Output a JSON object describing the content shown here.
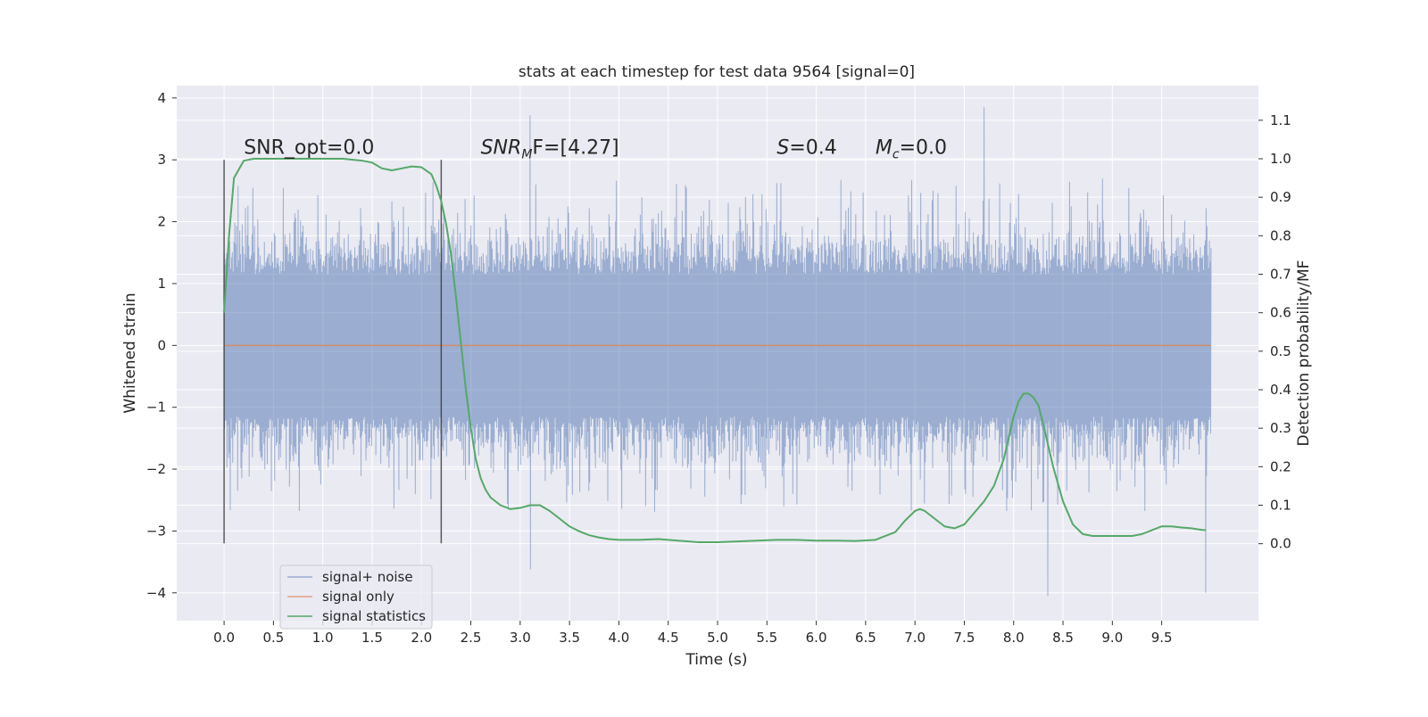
{
  "chart_data": {
    "type": "line",
    "title": "stats at each timestep for test data 9564 [signal=0]",
    "xlabel": "Time (s)",
    "ylabel": "Whitened strain",
    "ylabel_right": "Detection probability/MF",
    "xlim": [
      -0.48,
      10.48
    ],
    "ylim": [
      -4.45,
      4.2
    ],
    "ylim_right": [
      -0.2,
      1.19
    ],
    "x_ticks": [
      0.0,
      0.5,
      1.0,
      1.5,
      2.0,
      2.5,
      3.0,
      3.5,
      4.0,
      4.5,
      5.0,
      5.5,
      6.0,
      6.5,
      7.0,
      7.5,
      8.0,
      8.5,
      9.0,
      9.5
    ],
    "x_tick_labels": [
      "0.0",
      "0.5",
      "1.0",
      "1.5",
      "2.0",
      "2.5",
      "3.0",
      "3.5",
      "4.0",
      "4.5",
      "5.0",
      "5.5",
      "6.0",
      "6.5",
      "7.0",
      "7.5",
      "8.0",
      "8.5",
      "9.0",
      "9.5"
    ],
    "y_ticks": [
      -4,
      -3,
      -2,
      -1,
      0,
      1,
      2,
      3,
      4
    ],
    "y_tick_labels": [
      "−4",
      "−3",
      "−2",
      "−1",
      "0",
      "1",
      "2",
      "3",
      "4"
    ],
    "y_right_ticks": [
      0.0,
      0.1,
      0.2,
      0.3,
      0.4,
      0.5,
      0.6,
      0.7,
      0.8,
      0.9,
      1.0,
      1.1
    ],
    "y_right_tick_labels": [
      "0.0",
      "0.1",
      "0.2",
      "0.3",
      "0.4",
      "0.5",
      "0.6",
      "0.7",
      "0.8",
      "0.9",
      "1.0",
      "1.1"
    ],
    "grid": true,
    "legend_position": "bottom-left",
    "legend": [
      "signal+ noise",
      "signal only",
      "signal statistics"
    ],
    "colors": {
      "noise": "#4c72b0",
      "signal": "#dd8452",
      "statistics": "#55a868",
      "vline": "#333333",
      "axes_bg": "#eaeaf2",
      "grid": "#ffffff"
    },
    "series": [
      {
        "name": "signal+ noise",
        "axis": "left",
        "description": "dense whitened strain noise",
        "x_range": [
          0.0,
          10.0
        ],
        "core_amplitude": 1.15,
        "typical_peak": [
          -2.5,
          2.6
        ],
        "extremes": [
          {
            "x": 3.1,
            "y": 3.72
          },
          {
            "x": 7.7,
            "y": 3.85
          },
          {
            "x": 8.35,
            "y": -4.05
          },
          {
            "x": 9.95,
            "y": -4.0
          },
          {
            "x": 3.1,
            "y": -3.62
          }
        ]
      },
      {
        "name": "signal only",
        "axis": "left",
        "x": [
          0.0,
          10.0
        ],
        "y": [
          0.0,
          0.0
        ]
      },
      {
        "name": "signal statistics",
        "axis": "right",
        "x": [
          0.0,
          0.05,
          0.1,
          0.2,
          0.3,
          0.5,
          0.8,
          1.0,
          1.2,
          1.4,
          1.5,
          1.6,
          1.7,
          1.8,
          1.9,
          2.0,
          2.1,
          2.15,
          2.2,
          2.25,
          2.3,
          2.35,
          2.4,
          2.45,
          2.5,
          2.55,
          2.6,
          2.65,
          2.7,
          2.8,
          2.9,
          3.0,
          3.1,
          3.2,
          3.3,
          3.4,
          3.5,
          3.6,
          3.7,
          3.8,
          3.9,
          4.0,
          4.2,
          4.4,
          4.6,
          4.8,
          5.0,
          5.2,
          5.4,
          5.6,
          5.8,
          6.0,
          6.2,
          6.4,
          6.6,
          6.8,
          6.9,
          7.0,
          7.05,
          7.1,
          7.2,
          7.3,
          7.4,
          7.5,
          7.6,
          7.7,
          7.8,
          7.9,
          8.0,
          8.05,
          8.1,
          8.15,
          8.2,
          8.25,
          8.3,
          8.4,
          8.5,
          8.6,
          8.7,
          8.8,
          9.0,
          9.2,
          9.3,
          9.4,
          9.5,
          9.6,
          9.7,
          9.8,
          9.9,
          9.95
        ],
        "y": [
          0.6,
          0.8,
          0.95,
          0.995,
          1.0,
          1.0,
          1.0,
          1.0,
          1.0,
          0.995,
          0.99,
          0.975,
          0.97,
          0.975,
          0.98,
          0.978,
          0.96,
          0.93,
          0.89,
          0.83,
          0.75,
          0.64,
          0.52,
          0.4,
          0.3,
          0.22,
          0.17,
          0.14,
          0.12,
          0.1,
          0.09,
          0.093,
          0.1,
          0.1,
          0.085,
          0.065,
          0.045,
          0.032,
          0.022,
          0.016,
          0.012,
          0.01,
          0.01,
          0.012,
          0.008,
          0.004,
          0.004,
          0.006,
          0.008,
          0.01,
          0.01,
          0.008,
          0.008,
          0.007,
          0.01,
          0.03,
          0.06,
          0.085,
          0.09,
          0.085,
          0.065,
          0.045,
          0.04,
          0.05,
          0.08,
          0.11,
          0.15,
          0.22,
          0.33,
          0.37,
          0.39,
          0.39,
          0.38,
          0.36,
          0.31,
          0.2,
          0.11,
          0.05,
          0.025,
          0.02,
          0.02,
          0.02,
          0.025,
          0.035,
          0.045,
          0.045,
          0.042,
          0.04,
          0.036,
          0.035
        ]
      }
    ],
    "vertical_lines": [
      {
        "x": 0.0,
        "ymin": -3.2,
        "ymax": 3.0
      },
      {
        "x": 2.2,
        "ymin": -3.2,
        "ymax": 3.0
      }
    ],
    "annotations": [
      {
        "key": "snr_opt",
        "text": "SNR_opt=0.0",
        "x": 0.2,
        "y": 3.1
      },
      {
        "key": "snr_mf",
        "prefix": "SNR",
        "sub": "M",
        "suffix": "F=[4.27]",
        "x": 2.6,
        "y": 3.1
      },
      {
        "key": "s",
        "prefix": "S",
        "suffix": "=0.4",
        "x": 5.6,
        "y": 3.1
      },
      {
        "key": "mc",
        "prefix": "M",
        "sub": "c",
        "suffix": "=0.0",
        "x": 6.6,
        "y": 3.1
      }
    ]
  }
}
